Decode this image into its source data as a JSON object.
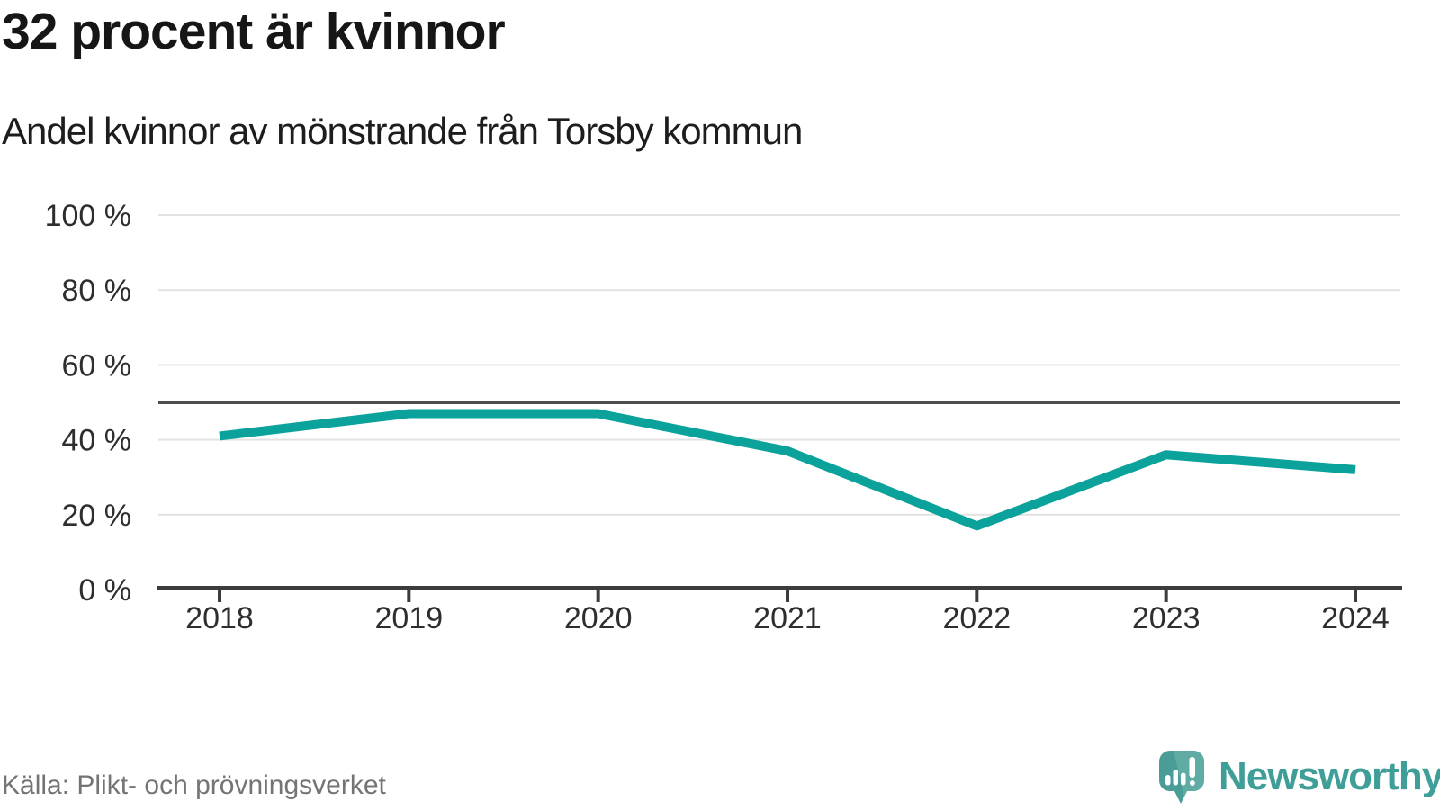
{
  "title": "32 procent är kvinnor",
  "subtitle": "Andel kvinnor av mönstrande från Torsby kommun",
  "source": "Källa: Plikt- och prövningsverket",
  "brand": {
    "name": "Newsworthy",
    "icon": "newsworthy-speech-bubble-bar-chart-icon"
  },
  "colors": {
    "line": "#0aa29a",
    "reference_line": "#4e4e4e",
    "axis": "#3c3c3c",
    "grid": "#e2e2e2",
    "tick_label": "#2e2e2e",
    "brand_icon": "#4a9d97",
    "brand_icon_light": "#60aca5",
    "brand_text": "#3f9e98"
  },
  "chart_data": {
    "type": "line",
    "title": "32 procent är kvinnor",
    "subtitle": "Andel kvinnor av mönstrande från Torsby kommun",
    "categories": [
      "2018",
      "2019",
      "2020",
      "2021",
      "2022",
      "2023",
      "2024"
    ],
    "series": [
      {
        "name": "Andel kvinnor av mönstrande",
        "values": [
          41,
          47,
          47,
          37,
          17,
          36,
          32
        ]
      }
    ],
    "unit": "%",
    "ylim": [
      0,
      100
    ],
    "yticks": [
      0,
      20,
      40,
      60,
      80,
      100
    ],
    "ytick_suffix": " %",
    "reference_line": 50,
    "grid": "horizontal",
    "legend": "none",
    "source_label": "Källa: Plikt- och prövningsverket"
  }
}
